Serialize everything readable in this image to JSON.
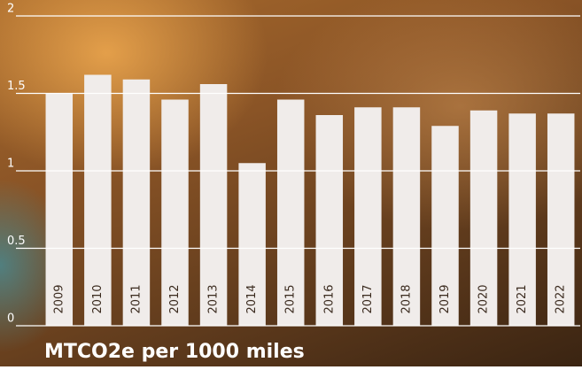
{
  "chart_data": {
    "type": "bar",
    "title": "MTCO2e per 1000 miles",
    "categories": [
      "2009",
      "2010",
      "2011",
      "2012",
      "2013",
      "2014",
      "2015",
      "2016",
      "2017",
      "2018",
      "2019",
      "2020",
      "2021",
      "2022"
    ],
    "values": [
      1.5,
      1.62,
      1.59,
      1.46,
      1.56,
      1.05,
      1.46,
      1.36,
      1.41,
      1.41,
      1.29,
      1.39,
      1.37,
      1.37
    ],
    "color": "#f0ecea",
    "ylim": [
      0,
      2
    ],
    "yticks": [
      0,
      0.5,
      1,
      1.5,
      2
    ],
    "grid": true
  }
}
